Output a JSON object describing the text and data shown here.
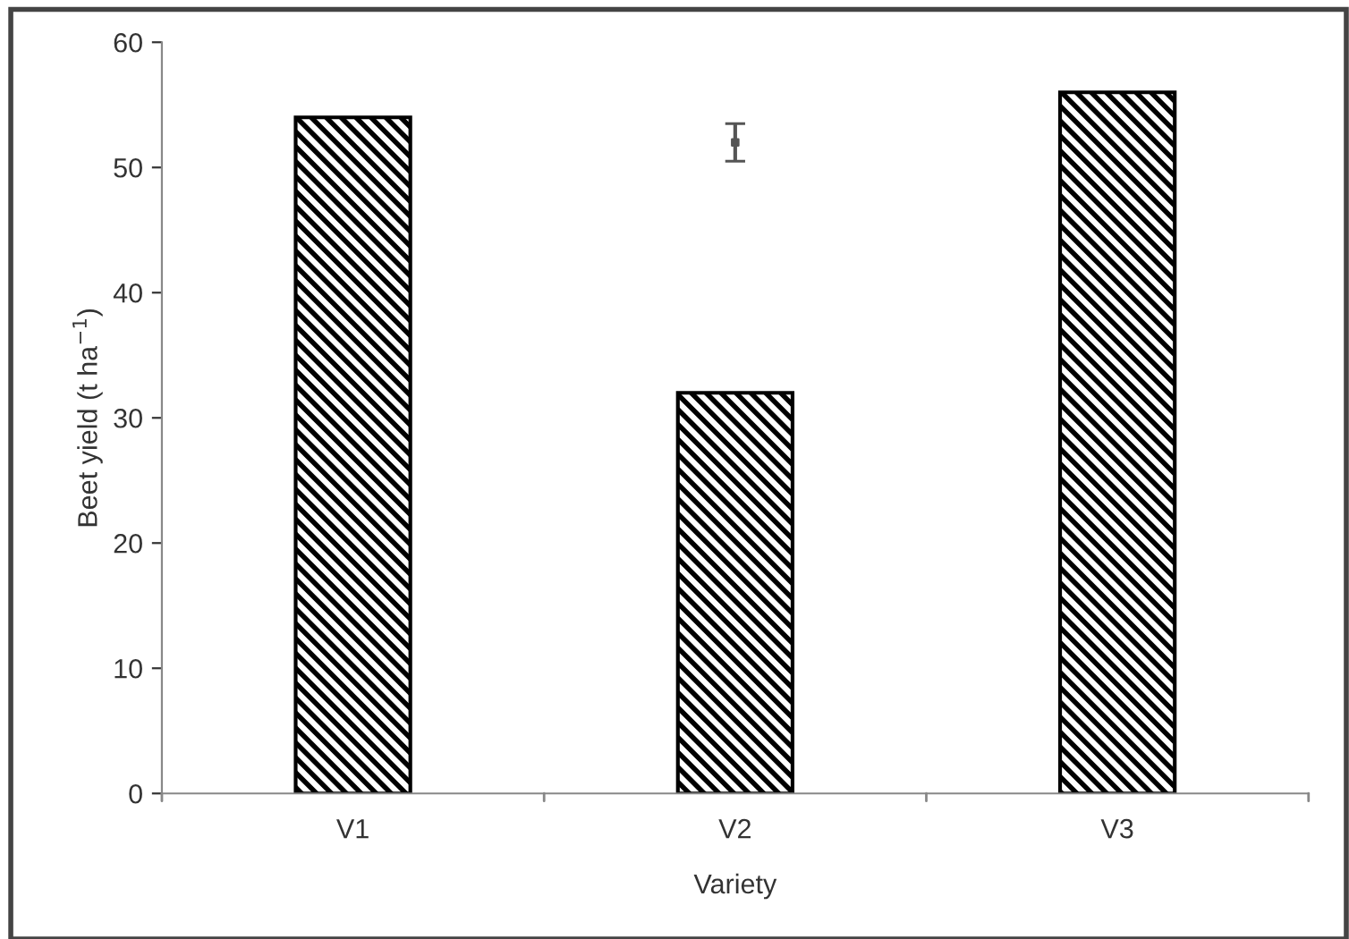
{
  "chart_data": {
    "type": "bar",
    "xlabel": "Variety",
    "ylabel": "Beet yield (t ha$^{−1}$)",
    "categories": [
      "V1",
      "V2",
      "V3"
    ],
    "series": [
      {
        "color": "#000000",
        "values": [
          54,
          32,
          56
        ]
      },
      {
        "type": "scatter",
        "color": "#555555",
        "x": [
          "V2"
        ],
        "values": [
          52
        ],
        "errors": [
          1.5
        ],
        "marker": "square"
      }
    ],
    "ylim": [
      0,
      60
    ],
    "yticks": [
      0,
      10,
      20,
      30,
      40,
      50,
      60
    ],
    "grid": false,
    "legend": false
  }
}
